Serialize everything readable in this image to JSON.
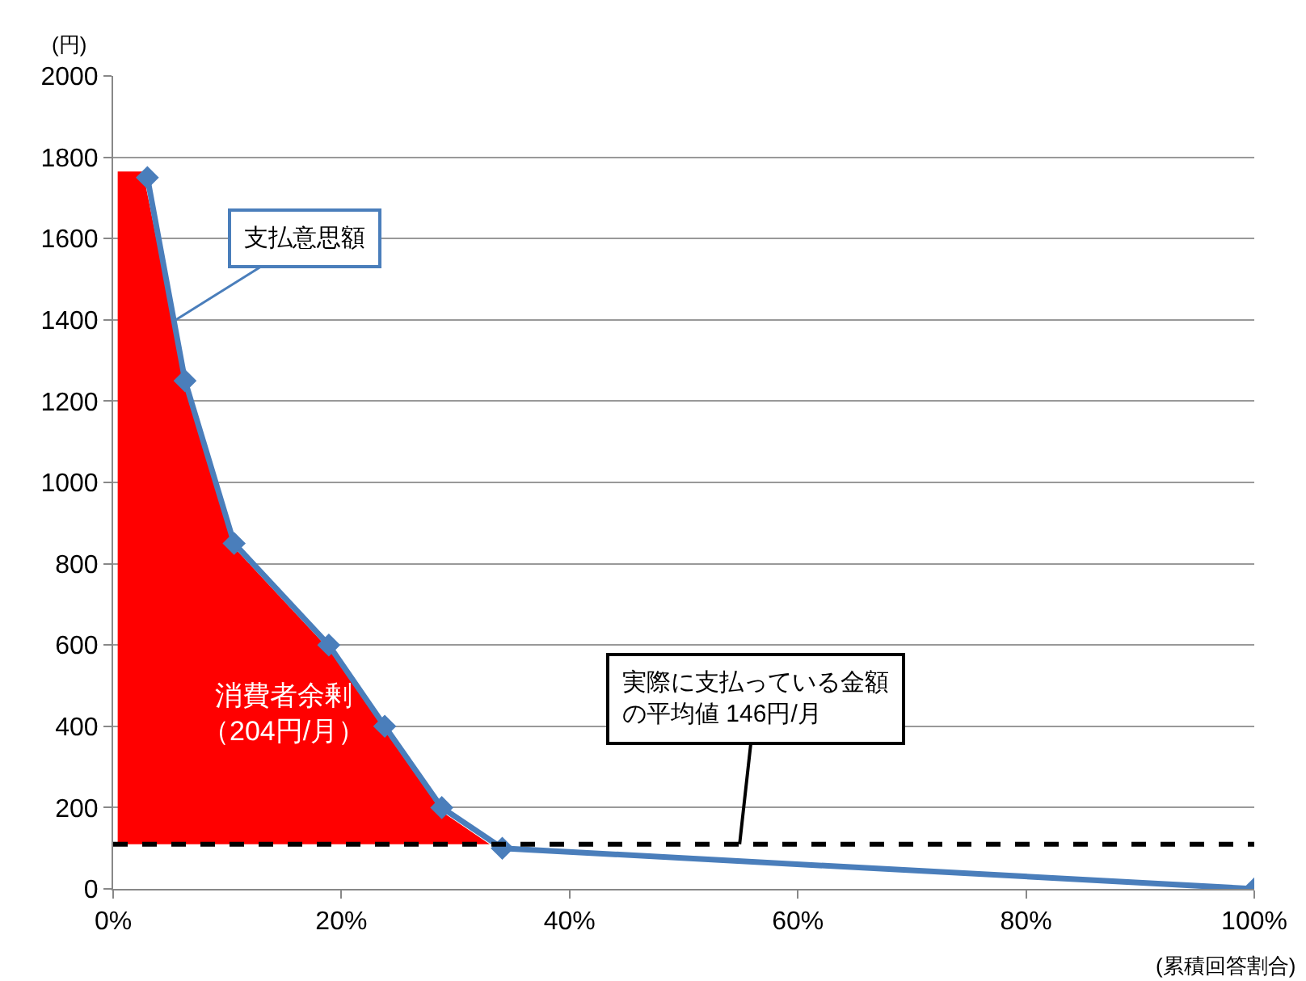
{
  "chart_data": {
    "type": "line",
    "ylabel": "(円)",
    "xlabel": "(累積回答割合)",
    "xlim": [
      0,
      100
    ],
    "xticks": [
      {
        "value": 0,
        "label": "0%"
      },
      {
        "value": 20,
        "label": "20%"
      },
      {
        "value": 40,
        "label": "40%"
      },
      {
        "value": 60,
        "label": "60%"
      },
      {
        "value": 80,
        "label": "80%"
      },
      {
        "value": 100,
        "label": "100%"
      }
    ],
    "ylim": [
      0,
      2000
    ],
    "yticks": [
      0,
      200,
      400,
      600,
      800,
      1000,
      1200,
      1400,
      1600,
      1800,
      2000
    ],
    "grid": "y",
    "marker": "diamond",
    "line_style": "solid",
    "series": [
      {
        "type": "area",
        "marker": "none",
        "color": "#ff0000",
        "x": [
          0.4,
          2.6,
          6.3,
          10.6,
          18.9,
          23.8,
          28.8,
          33
        ],
        "values": [
          1765,
          1765,
          1250,
          840,
          590,
          390,
          190,
          110
        ]
      },
      {
        "color": "#4a7ebb",
        "x": [
          3.0,
          6.3,
          10.6,
          18.9,
          23.8,
          28.8,
          34.1,
          100
        ],
        "values": [
          1750,
          1250,
          850,
          600,
          400,
          200,
          100,
          0
        ]
      }
    ],
    "ref_lines": [
      {
        "axis": "y",
        "value": 110,
        "color": "#000000",
        "line_style": "dashed"
      }
    ],
    "annotations": [
      {
        "text": "支払意思額",
        "x": 5.5,
        "y": 1400
      },
      {
        "text": "実際に支払っている金額の平均値 146円/月",
        "x": 54.9,
        "y": 110
      },
      "消費者余剰（204円/月）"
    ]
  }
}
